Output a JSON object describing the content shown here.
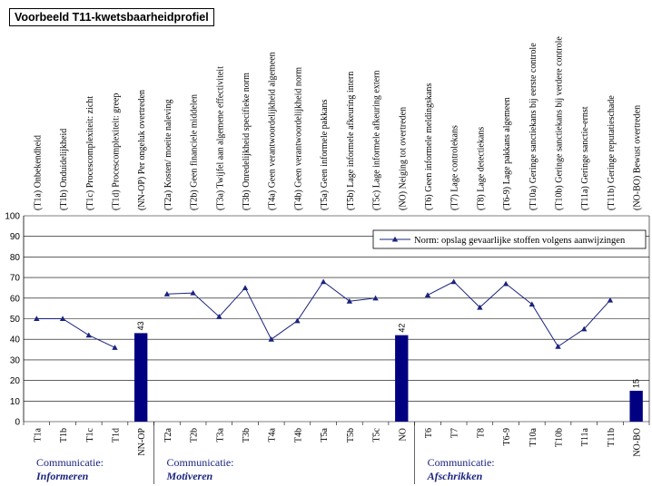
{
  "title": "Voorbeeld T11-kwetsbaarheidprofiel",
  "chart_data": {
    "type": "line",
    "ylim": [
      0,
      100
    ],
    "yticks": [
      0,
      10,
      20,
      30,
      40,
      50,
      60,
      70,
      80,
      90,
      100
    ],
    "grid": true,
    "legend_position": "top-right",
    "categories": [
      "T1a",
      "T1b",
      "T1c",
      "T1d",
      "NN-OP",
      "T2a",
      "T2b",
      "T3a",
      "T3b",
      "T4a",
      "T4b",
      "T5a",
      "T5b",
      "T5c",
      "NO",
      "T6",
      "T7",
      "T8",
      "T6-9",
      "T10a",
      "T10b",
      "T11a",
      "T11b",
      "NO-BO"
    ],
    "long_labels": [
      "(T1a) Onbekendheid",
      "(T1b) Onduidelijkheid",
      "(T1c) Procescomplexiteit: zicht",
      "(T1d) Procescomplexiteit: greep",
      "(NN-OP) Per ongeluk overtreden",
      "(T2a) Kosten/ moeite naleving",
      "(T2b) Geen financiele middelen",
      "(T3a) Twijfel aan algemene effectiviteit",
      "(T3b) Onredelijkheid specifieke norm",
      "(T4a) Geen verantwoordelijkheid algemeen",
      "(T4b) Geen verantwoordelijkheid norm",
      "(T5a) Geen informele pakkans",
      "(T5b) Lage informele afkeuring intern",
      "(T5c) Lage informele afkeuring extern",
      "(NO) Neiging tot overtreden",
      "(T6) Geen informele meldingskans",
      "(T7) Lage controlekans",
      "(T8) Lage detectiekans",
      "(T6-9) Lage pakkans algemeen",
      "(T10a) Geringe sanctiekans bij eerste controle",
      "(T10b) Geringe sanctiekans bij verdere controle",
      "(T11a) Geringe sanctie-ernst",
      "(T11b) Geringe reputatieschade",
      "(NO-BO) Bewust overtreden"
    ],
    "line_series": {
      "name": "Norm: opslag gevaarlijke stoffen volgens aanwijzingen",
      "color": "#1a237e",
      "segments": [
        [
          {
            "x": "T1a",
            "y": 50
          },
          {
            "x": "T1b",
            "y": 50
          },
          {
            "x": "T1c",
            "y": 42
          },
          {
            "x": "T1d",
            "y": 36
          }
        ],
        [
          {
            "x": "T2a",
            "y": 62
          },
          {
            "x": "T2b",
            "y": 62.5
          },
          {
            "x": "T3a",
            "y": 51
          },
          {
            "x": "T3b",
            "y": 65
          },
          {
            "x": "T4a",
            "y": 40
          },
          {
            "x": "T4b",
            "y": 49
          },
          {
            "x": "T5a",
            "y": 68
          },
          {
            "x": "T5b",
            "y": 58.5
          },
          {
            "x": "T5c",
            "y": 60
          }
        ],
        [
          {
            "x": "T6",
            "y": 61.5
          },
          {
            "x": "T7",
            "y": 68
          },
          {
            "x": "T8",
            "y": 55.5
          },
          {
            "x": "T6-9",
            "y": 67
          },
          {
            "x": "T10a",
            "y": 57
          },
          {
            "x": "T10b",
            "y": 36.5
          },
          {
            "x": "T11a",
            "y": 45
          },
          {
            "x": "T11b",
            "y": 59
          }
        ]
      ]
    },
    "bar_series": {
      "color": "#000080",
      "bars": [
        {
          "x": "NN-OP",
          "value": 43,
          "label": "43"
        },
        {
          "x": "NO",
          "value": 42,
          "label": "42"
        },
        {
          "x": "NO-BO",
          "value": 15,
          "label": "15"
        }
      ]
    },
    "groups": [
      {
        "title": "Communicatie:",
        "subtitle": "Informeren",
        "from": "T1a",
        "to": "NN-OP"
      },
      {
        "title": "Communicatie:",
        "subtitle": "Motiveren",
        "from": "T2a",
        "to": "NO"
      },
      {
        "title": "Communicatie:",
        "subtitle": "Afschrikken",
        "from": "T6",
        "to": "NO-BO"
      }
    ]
  }
}
